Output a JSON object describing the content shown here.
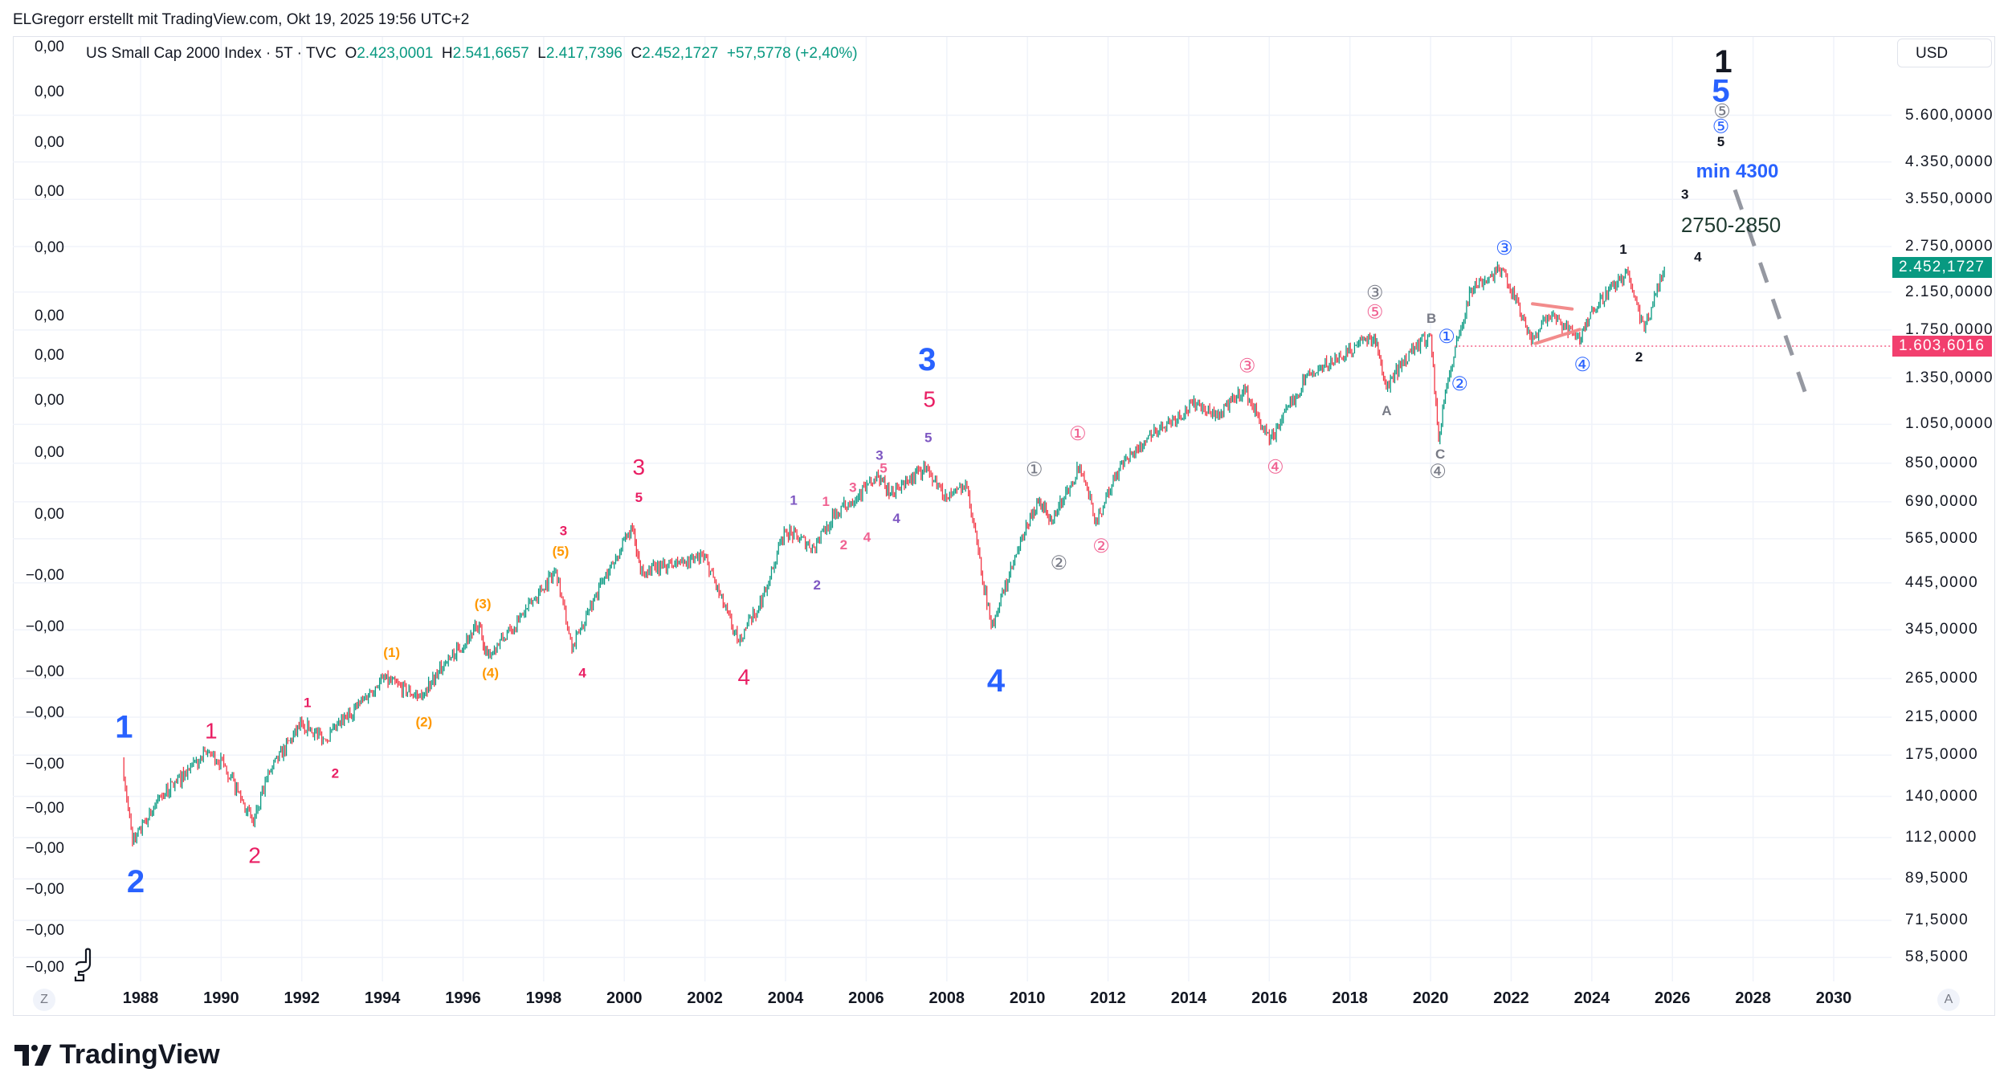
{
  "credit": "ELGregorr erstellt mit TradingView.com, Okt 19, 2025 19:56 UTC+2",
  "legend": {
    "symbol": "US Small Cap 2000 Index · 5T · TVC",
    "o_label": "O",
    "o": "2.423,0001",
    "h_label": "H",
    "h": "2.541,6657",
    "l_label": "L",
    "l": "2.417,7396",
    "c_label": "C",
    "c": "2.452,1727",
    "change": "+57,5778 (+2,40%)"
  },
  "currency": "USD",
  "left_axis_labels": [
    "0,00",
    "0,00",
    "0,00",
    "0,00",
    "0,00",
    "0,00",
    "0,00",
    "0,00",
    "0,00",
    "0,00",
    "−0,00",
    "−0,00",
    "−0,00",
    "−0,00",
    "−0,00",
    "−0,00",
    "−0,00",
    "−0,00",
    "−0,00",
    "−0,00"
  ],
  "buttons": {
    "z": "Z",
    "a": "A"
  },
  "logo_text": "TradingView",
  "colors": {
    "up": "#089981",
    "down": "#f23645",
    "blue": "#2962ff",
    "red": "#e91e63",
    "pink": "#f06292",
    "orange": "#ff9800",
    "purple": "#7e57c2",
    "gray": "#787b86",
    "black": "#131722",
    "darkgreen": "#1e3a2f"
  },
  "chart_data": {
    "type": "candlestick",
    "title": "US Small Cap 2000 Index · 5T · TVC",
    "scale": "log",
    "xlim": [
      1986.5,
      2031.5
    ],
    "ylim": [
      55,
      8600
    ],
    "x_ticks": [
      "1988",
      "1990",
      "1992",
      "1994",
      "1996",
      "1998",
      "2000",
      "2002",
      "2004",
      "2006",
      "2008",
      "2010",
      "2012",
      "2014",
      "2016",
      "2018",
      "2020",
      "2022",
      "2024",
      "2026",
      "2028",
      "2030"
    ],
    "y_ticks": [
      {
        "value": 5600,
        "label": "5.600,0000"
      },
      {
        "value": 4350,
        "label": "4.350,0000"
      },
      {
        "value": 3550,
        "label": "3.550,0000"
      },
      {
        "value": 2750,
        "label": "2.750,0000"
      },
      {
        "value": 2150,
        "label": "2.150,0000"
      },
      {
        "value": 1750,
        "label": "1.750,0000"
      },
      {
        "value": 1350,
        "label": "1.350,0000"
      },
      {
        "value": 1050,
        "label": "1.050,0000"
      },
      {
        "value": 850,
        "label": "850,0000"
      },
      {
        "value": 690,
        "label": "690,0000"
      },
      {
        "value": 565,
        "label": "565,0000"
      },
      {
        "value": 445,
        "label": "445,0000"
      },
      {
        "value": 345,
        "label": "345,0000"
      },
      {
        "value": 265,
        "label": "265,0000"
      },
      {
        "value": 215,
        "label": "215,0000"
      },
      {
        "value": 175,
        "label": "175,0000"
      },
      {
        "value": 140,
        "label": "140,0000"
      },
      {
        "value": 112,
        "label": "112,0000"
      },
      {
        "value": 89.5,
        "label": "89,5000"
      },
      {
        "value": 71.5,
        "label": "71,5000"
      },
      {
        "value": 58.5,
        "label": "58,5000"
      }
    ],
    "last_price": {
      "value": 2452.1727,
      "label": "2.452,1727"
    },
    "marked_level": {
      "value": 1603.6016,
      "label": "1.603,6016"
    },
    "price_path": [
      [
        1987.55,
        169
      ],
      [
        1987.8,
        108
      ],
      [
        1988.5,
        140
      ],
      [
        1989.7,
        178
      ],
      [
        1990.1,
        165
      ],
      [
        1990.8,
        121
      ],
      [
        1991.2,
        160
      ],
      [
        1992.0,
        208
      ],
      [
        1992.6,
        190
      ],
      [
        1994.0,
        265
      ],
      [
        1994.9,
        240
      ],
      [
        1995.6,
        290
      ],
      [
        1996.4,
        354
      ],
      [
        1996.6,
        300
      ],
      [
        1997.2,
        345
      ],
      [
        1998.3,
        478
      ],
      [
        1998.7,
        310
      ],
      [
        1999.3,
        420
      ],
      [
        2000.2,
        600
      ],
      [
        2000.4,
        470
      ],
      [
        2001.5,
        500
      ],
      [
        2002.0,
        510
      ],
      [
        2002.8,
        327
      ],
      [
        2003.3,
        380
      ],
      [
        2004.0,
        590
      ],
      [
        2004.7,
        540
      ],
      [
        2005.2,
        640
      ],
      [
        2006.3,
        793
      ],
      [
        2006.6,
        720
      ],
      [
        2007.5,
        832
      ],
      [
        2008.0,
        700
      ],
      [
        2008.5,
        750
      ],
      [
        2009.1,
        350
      ],
      [
        2010.0,
        610
      ],
      [
        2010.3,
        700
      ],
      [
        2010.6,
        620
      ],
      [
        2011.3,
        845
      ],
      [
        2011.7,
        620
      ],
      [
        2012.2,
        800
      ],
      [
        2013.0,
        990
      ],
      [
        2014.2,
        1178
      ],
      [
        2014.7,
        1100
      ],
      [
        2015.4,
        1262
      ],
      [
        2016.0,
        955
      ],
      [
        2016.9,
        1350
      ],
      [
        2018.6,
        1700
      ],
      [
        2018.9,
        1280
      ],
      [
        2019.5,
        1560
      ],
      [
        2020.0,
        1700
      ],
      [
        2020.2,
        955
      ],
      [
        2020.4,
        1300
      ],
      [
        2021.0,
        2195
      ],
      [
        2021.8,
        2440
      ],
      [
        2022.5,
        1650
      ],
      [
        2022.9,
        1900
      ],
      [
        2023.3,
        1800
      ],
      [
        2023.7,
        1650
      ],
      [
        2024.0,
        1970
      ],
      [
        2024.9,
        2400
      ],
      [
        2025.3,
        1750
      ],
      [
        2025.8,
        2452
      ]
    ],
    "annotations": [
      {
        "text": "1",
        "x": 1987.59,
        "y": 205,
        "color": "blue",
        "size": "big"
      },
      {
        "text": "2",
        "x": 1987.88,
        "y": 88.6,
        "color": "blue",
        "size": "big"
      },
      {
        "text": "3",
        "x": 2007.51,
        "y": 1497,
        "color": "blue",
        "size": "big"
      },
      {
        "text": "4",
        "x": 2009.22,
        "y": 263,
        "color": "blue",
        "size": "big"
      },
      {
        "text": "5",
        "x": 2027.2,
        "y": 6420,
        "color": "blue",
        "size": "big"
      },
      {
        "text": "1",
        "x": 2027.26,
        "y": 7530,
        "color": "black",
        "size": "big"
      },
      {
        "text": "1",
        "x": 1989.75,
        "y": 200,
        "color": "red",
        "size": "mid"
      },
      {
        "text": "2",
        "x": 1990.83,
        "y": 102,
        "color": "red",
        "size": "mid"
      },
      {
        "text": "3",
        "x": 2000.36,
        "y": 836,
        "color": "red",
        "size": "mid"
      },
      {
        "text": "4",
        "x": 2002.97,
        "y": 268,
        "color": "red",
        "size": "mid"
      },
      {
        "text": "5",
        "x": 2007.57,
        "y": 1207,
        "color": "red",
        "size": "mid"
      },
      {
        "text": "1",
        "x": 1992.14,
        "y": 233,
        "color": "red",
        "size": "small"
      },
      {
        "text": "2",
        "x": 1992.83,
        "y": 159,
        "color": "red",
        "size": "small"
      },
      {
        "text": "3",
        "x": 1998.49,
        "y": 591,
        "color": "red",
        "size": "small"
      },
      {
        "text": "4",
        "x": 1998.96,
        "y": 274,
        "color": "red",
        "size": "small"
      },
      {
        "text": "5",
        "x": 2000.36,
        "y": 708,
        "color": "red",
        "size": "small"
      },
      {
        "text": "(1)",
        "x": 1994.23,
        "y": 306,
        "color": "orange",
        "size": "small"
      },
      {
        "text": "(2)",
        "x": 1995.03,
        "y": 210,
        "color": "orange",
        "size": "small"
      },
      {
        "text": "(3)",
        "x": 1996.49,
        "y": 398,
        "color": "orange",
        "size": "small"
      },
      {
        "text": "(4)",
        "x": 1996.68,
        "y": 274,
        "color": "orange",
        "size": "small"
      },
      {
        "text": "(5)",
        "x": 1998.42,
        "y": 529,
        "color": "orange",
        "size": "small"
      },
      {
        "text": "1",
        "x": 2004.2,
        "y": 698,
        "color": "purple",
        "size": "small"
      },
      {
        "text": "2",
        "x": 2004.78,
        "y": 441,
        "color": "purple",
        "size": "small"
      },
      {
        "text": "3",
        "x": 2006.33,
        "y": 889,
        "color": "purple",
        "size": "small"
      },
      {
        "text": "4",
        "x": 2006.75,
        "y": 633,
        "color": "purple",
        "size": "small"
      },
      {
        "text": "5",
        "x": 2007.54,
        "y": 980,
        "color": "purple",
        "size": "small"
      },
      {
        "text": "1",
        "x": 2005.0,
        "y": 693,
        "color": "pink",
        "size": "small"
      },
      {
        "text": "2",
        "x": 2005.44,
        "y": 548,
        "color": "pink",
        "size": "small"
      },
      {
        "text": "3",
        "x": 2005.67,
        "y": 748,
        "color": "pink",
        "size": "small"
      },
      {
        "text": "4",
        "x": 2006.02,
        "y": 571,
        "color": "pink",
        "size": "small"
      },
      {
        "text": "5",
        "x": 2006.43,
        "y": 830,
        "color": "pink",
        "size": "small"
      },
      {
        "text": "①",
        "x": 2010.17,
        "y": 824,
        "color": "gray",
        "size": "circ"
      },
      {
        "text": "②",
        "x": 2010.78,
        "y": 497,
        "color": "gray",
        "size": "circ"
      },
      {
        "text": "③",
        "x": 2018.62,
        "y": 2147,
        "color": "gray",
        "size": "circ"
      },
      {
        "text": "④",
        "x": 2020.18,
        "y": 816,
        "color": "gray",
        "size": "circ"
      },
      {
        "text": "⑤",
        "x": 2027.23,
        "y": 5745,
        "color": "gray",
        "size": "circ"
      },
      {
        "text": "①",
        "x": 2011.25,
        "y": 1001,
        "color": "pink",
        "size": "circ"
      },
      {
        "text": "②",
        "x": 2011.83,
        "y": 544,
        "color": "pink",
        "size": "circ"
      },
      {
        "text": "③",
        "x": 2015.45,
        "y": 1446,
        "color": "pink",
        "size": "circ"
      },
      {
        "text": "④",
        "x": 2016.15,
        "y": 836,
        "color": "pink",
        "size": "circ"
      },
      {
        "text": "⑤",
        "x": 2018.62,
        "y": 1935,
        "color": "pink",
        "size": "circ"
      },
      {
        "text": "A",
        "x": 2018.91,
        "y": 1134,
        "color": "gray",
        "size": "small"
      },
      {
        "text": "B",
        "x": 2020.02,
        "y": 1868,
        "color": "gray",
        "size": "small"
      },
      {
        "text": "C",
        "x": 2020.24,
        "y": 896,
        "color": "gray",
        "size": "small"
      },
      {
        "text": "①",
        "x": 2020.4,
        "y": 1695,
        "color": "blue",
        "size": "circ"
      },
      {
        "text": "②",
        "x": 2020.72,
        "y": 1312,
        "color": "blue",
        "size": "circ"
      },
      {
        "text": "③",
        "x": 2021.83,
        "y": 2736,
        "color": "blue",
        "size": "circ"
      },
      {
        "text": "④",
        "x": 2023.77,
        "y": 1456,
        "color": "blue",
        "size": "circ"
      },
      {
        "text": "⑤",
        "x": 2027.2,
        "y": 5288,
        "color": "blue",
        "size": "circ"
      },
      {
        "text": "1",
        "x": 2024.78,
        "y": 2717,
        "color": "black",
        "size": "smallbold"
      },
      {
        "text": "2",
        "x": 2025.17,
        "y": 1517,
        "color": "black",
        "size": "smallbold"
      },
      {
        "text": "3",
        "x": 2026.31,
        "y": 3661,
        "color": "black",
        "size": "smallbold"
      },
      {
        "text": "4",
        "x": 2026.63,
        "y": 2607,
        "color": "black",
        "size": "smallbold"
      },
      {
        "text": "5",
        "x": 2027.2,
        "y": 4865,
        "color": "black",
        "size": "smallbold"
      },
      {
        "text": "min 4300",
        "x": 2027.61,
        "y": 4147,
        "color": "blue",
        "size": "note"
      },
      {
        "text": "2750-2850",
        "x": 2027.45,
        "y": 3100,
        "color": "darkgreen",
        "size": "notelight"
      }
    ],
    "projection_line": {
      "from": [
        2027.55,
        3739
      ],
      "to": [
        2029.3,
        1241
      ],
      "style": "dashed",
      "color": "gray"
    },
    "triangle_lines": [
      {
        "from": [
          2022.53,
          2017
        ],
        "to": [
          2023.51,
          1961
        ]
      },
      {
        "from": [
          2022.6,
          1627
        ],
        "to": [
          2023.7,
          1755
        ]
      }
    ]
  }
}
